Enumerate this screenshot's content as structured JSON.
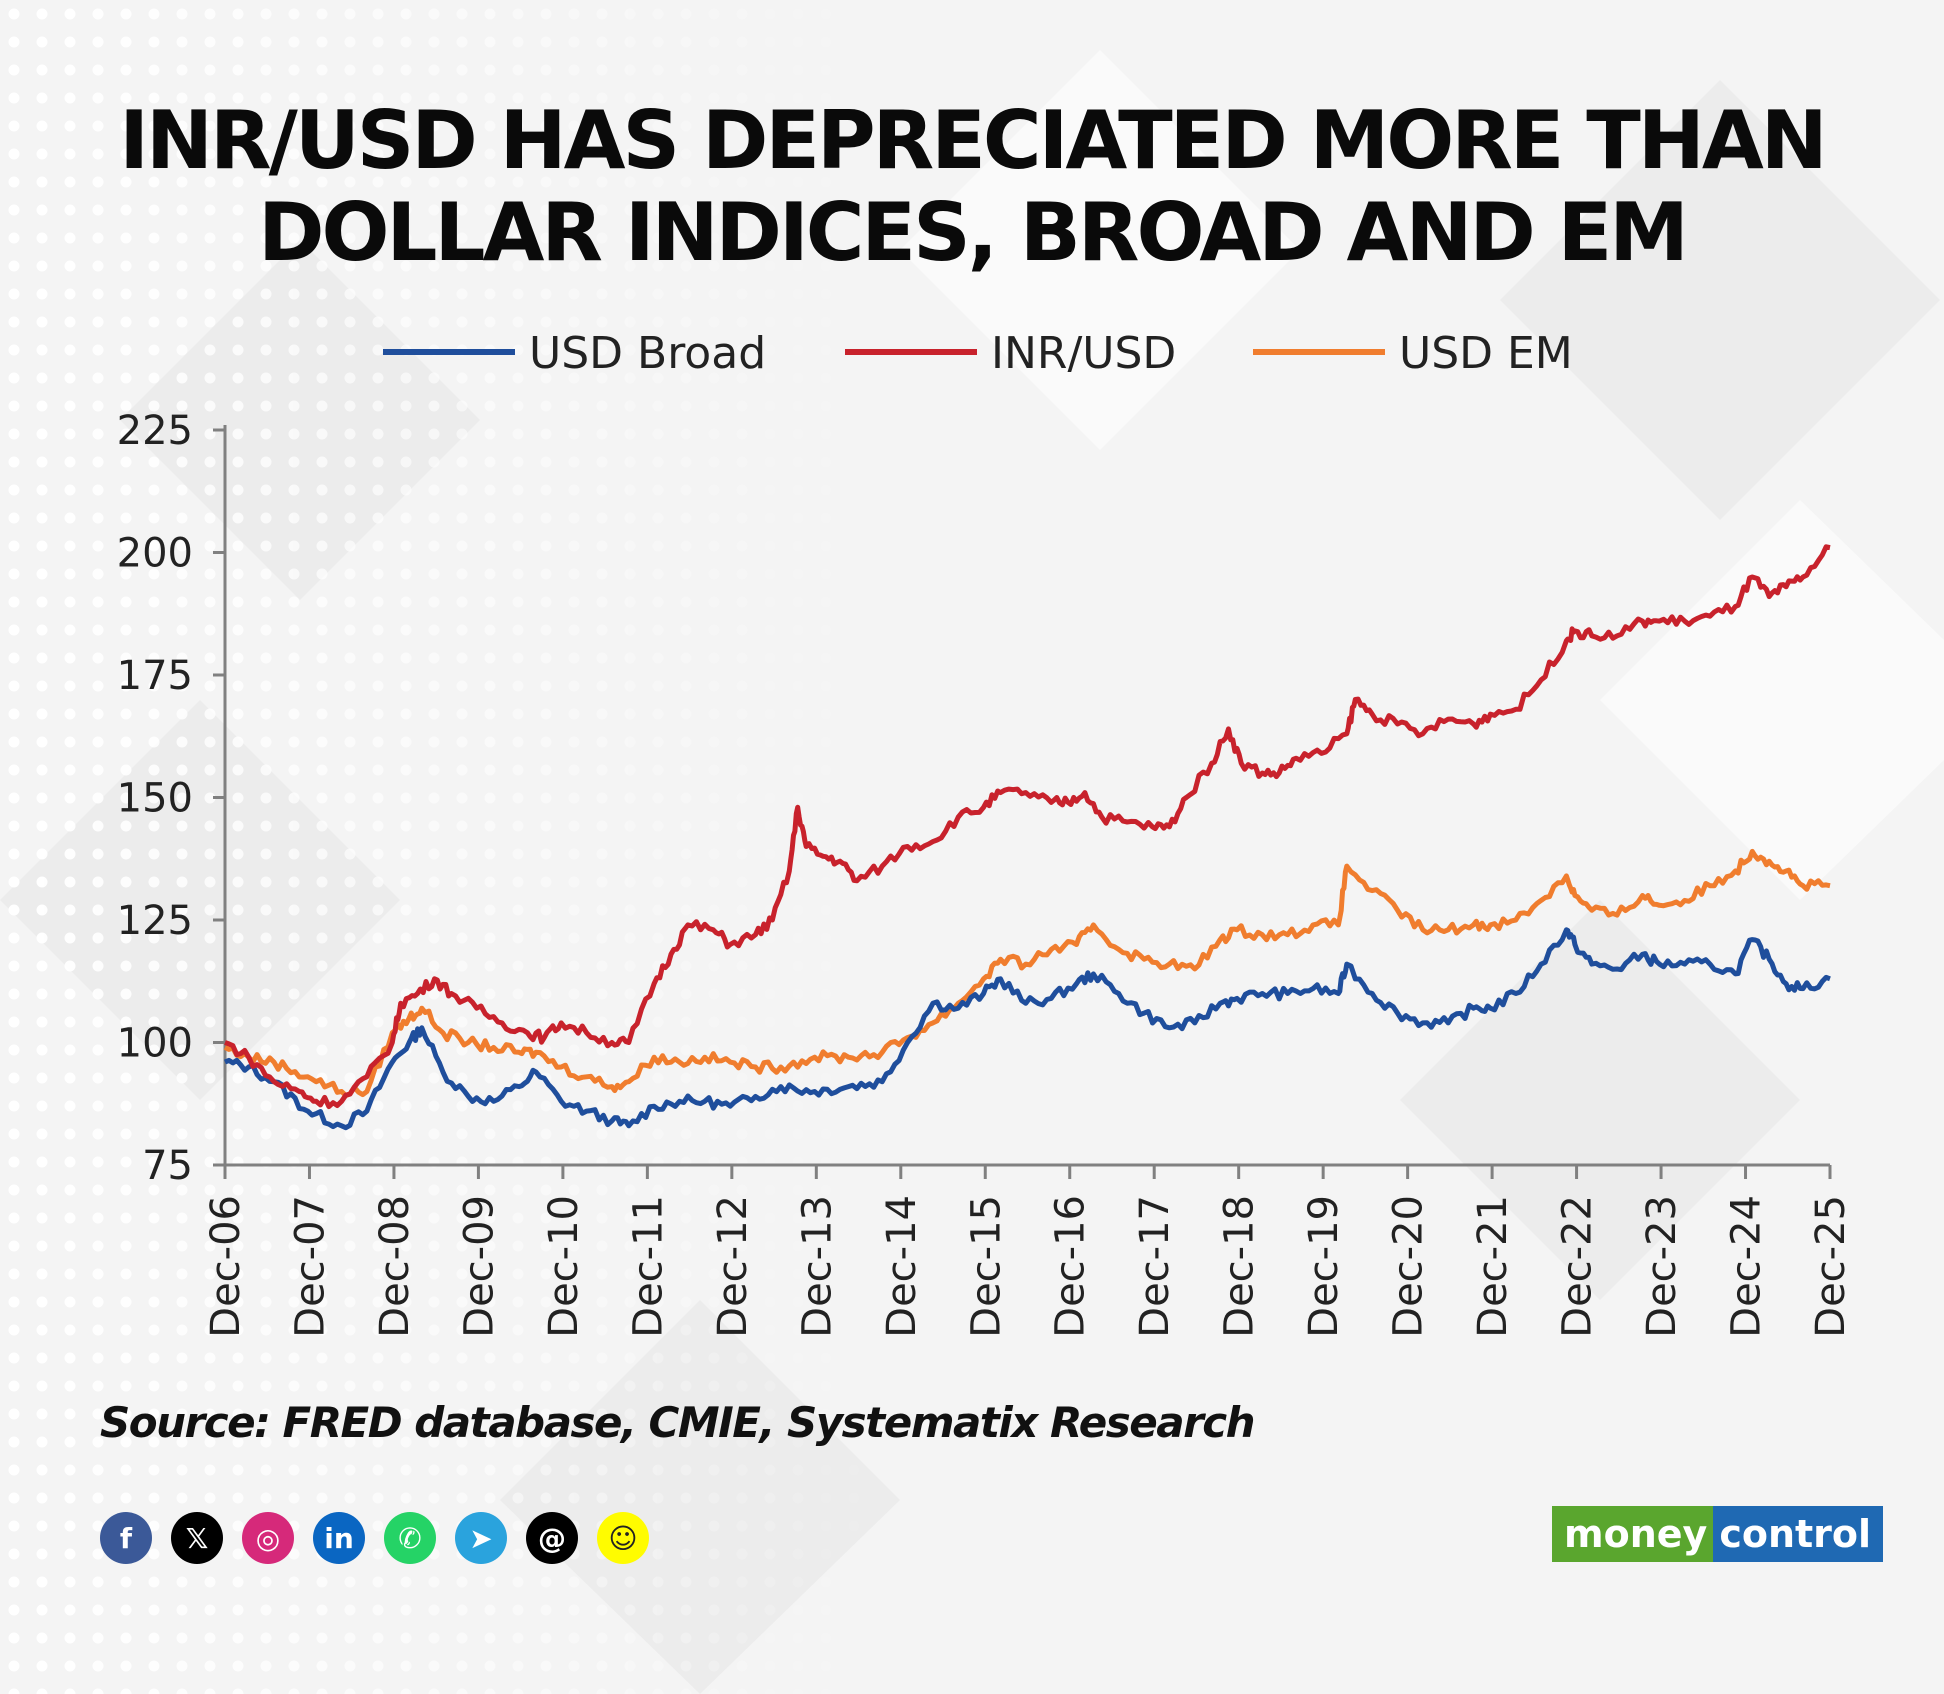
{
  "title_line1": "INR/USD HAS DEPRECIATED MORE THAN",
  "title_line2": "DOLLAR INDICES, BROAD AND EM",
  "source": "Source: FRED database, CMIE, Systematix Research",
  "social": [
    {
      "name": "facebook-icon",
      "glyph": "f",
      "color": "#3b5998"
    },
    {
      "name": "x-icon",
      "glyph": "𝕏",
      "color": "#000000"
    },
    {
      "name": "instagram-icon",
      "glyph": "◎",
      "color": "#d6297a"
    },
    {
      "name": "linkedin-icon",
      "glyph": "in",
      "color": "#0a66c2"
    },
    {
      "name": "whatsapp-icon",
      "glyph": "✆",
      "color": "#25d366"
    },
    {
      "name": "telegram-icon",
      "glyph": "➤",
      "color": "#2aa3dd"
    },
    {
      "name": "threads-icon",
      "glyph": "@",
      "color": "#000000"
    },
    {
      "name": "snapchat-icon",
      "glyph": "☺",
      "color": "#fffc00"
    }
  ],
  "brand": {
    "part1": "money",
    "part2": "control"
  },
  "chart_data": {
    "type": "line",
    "title": "INR/USD HAS DEPRECIATED MORE THAN DOLLAR INDICES, BROAD AND EM",
    "xlabel": "",
    "ylabel": "",
    "ylim": [
      75,
      225
    ],
    "yticks": [
      75,
      100,
      125,
      150,
      175,
      200,
      225
    ],
    "xticks": [
      "Dec-06",
      "Dec-07",
      "Dec-08",
      "Dec-09",
      "Dec-10",
      "Dec-11",
      "Dec-12",
      "Dec-13",
      "Dec-14",
      "Dec-15",
      "Dec-16",
      "Dec-17",
      "Dec-18",
      "Dec-19",
      "Dec-20",
      "Dec-21",
      "Dec-22",
      "Dec-23",
      "Dec-24",
      "Dec-25"
    ],
    "legend_position": "top",
    "grid": false,
    "x_start": 2006.92,
    "x_end": 2025.92,
    "series": [
      {
        "name": "USD Broad",
        "color": "#1f4e9c",
        "points": [
          [
            2006.92,
            96
          ],
          [
            2007.2,
            95
          ],
          [
            2007.5,
            92
          ],
          [
            2007.9,
            86
          ],
          [
            2008.3,
            83
          ],
          [
            2008.6,
            86
          ],
          [
            2008.9,
            96
          ],
          [
            2009.1,
            100
          ],
          [
            2009.25,
            103
          ],
          [
            2009.5,
            94
          ],
          [
            2009.8,
            89
          ],
          [
            2010.1,
            88
          ],
          [
            2010.4,
            91
          ],
          [
            2010.6,
            94
          ],
          [
            2010.9,
            88
          ],
          [
            2011.2,
            86
          ],
          [
            2011.5,
            84
          ],
          [
            2011.7,
            83
          ],
          [
            2012.0,
            87
          ],
          [
            2012.3,
            88
          ],
          [
            2012.6,
            88
          ],
          [
            2012.9,
            87
          ],
          [
            2013.2,
            89
          ],
          [
            2013.5,
            91
          ],
          [
            2013.9,
            90
          ],
          [
            2014.3,
            91
          ],
          [
            2014.7,
            92
          ],
          [
            2015.0,
            100
          ],
          [
            2015.3,
            108
          ],
          [
            2015.6,
            107
          ],
          [
            2015.9,
            110
          ],
          [
            2016.1,
            113
          ],
          [
            2016.4,
            108
          ],
          [
            2016.7,
            109
          ],
          [
            2017.0,
            112
          ],
          [
            2017.2,
            114
          ],
          [
            2017.5,
            110
          ],
          [
            2017.8,
            106
          ],
          [
            2018.1,
            103
          ],
          [
            2018.4,
            104
          ],
          [
            2018.7,
            108
          ],
          [
            2018.9,
            109
          ],
          [
            2019.2,
            110
          ],
          [
            2019.5,
            110
          ],
          [
            2019.8,
            111
          ],
          [
            2020.1,
            110
          ],
          [
            2020.2,
            116
          ],
          [
            2020.5,
            110
          ],
          [
            2020.8,
            106
          ],
          [
            2021.1,
            104
          ],
          [
            2021.4,
            104
          ],
          [
            2021.7,
            107
          ],
          [
            2021.9,
            107
          ],
          [
            2022.2,
            110
          ],
          [
            2022.5,
            116
          ],
          [
            2022.8,
            123
          ],
          [
            2022.9,
            120
          ],
          [
            2023.1,
            116
          ],
          [
            2023.4,
            115
          ],
          [
            2023.7,
            118
          ],
          [
            2023.9,
            116
          ],
          [
            2024.2,
            116
          ],
          [
            2024.5,
            116
          ],
          [
            2024.8,
            114
          ],
          [
            2025.0,
            121
          ],
          [
            2025.2,
            117
          ],
          [
            2025.4,
            112
          ],
          [
            2025.6,
            111
          ],
          [
            2025.92,
            113
          ]
        ]
      },
      {
        "name": "INR/USD",
        "color": "#c8222c",
        "points": [
          [
            2006.92,
            100
          ],
          [
            2007.2,
            97
          ],
          [
            2007.5,
            92
          ],
          [
            2007.8,
            90
          ],
          [
            2008.0,
            88
          ],
          [
            2008.3,
            88
          ],
          [
            2008.6,
            93
          ],
          [
            2008.9,
            100
          ],
          [
            2009.0,
            108
          ],
          [
            2009.2,
            110
          ],
          [
            2009.4,
            113
          ],
          [
            2009.6,
            110
          ],
          [
            2009.9,
            107
          ],
          [
            2010.2,
            104
          ],
          [
            2010.5,
            102
          ],
          [
            2010.7,
            101
          ],
          [
            2010.9,
            104
          ],
          [
            2011.2,
            102
          ],
          [
            2011.5,
            100
          ],
          [
            2011.7,
            100
          ],
          [
            2012.0,
            112
          ],
          [
            2012.2,
            118
          ],
          [
            2012.4,
            124
          ],
          [
            2012.7,
            123
          ],
          [
            2012.9,
            120
          ],
          [
            2013.2,
            122
          ],
          [
            2013.4,
            125
          ],
          [
            2013.6,
            135
          ],
          [
            2013.7,
            148
          ],
          [
            2013.8,
            140
          ],
          [
            2014.0,
            138
          ],
          [
            2014.2,
            137
          ],
          [
            2014.4,
            133
          ],
          [
            2014.7,
            136
          ],
          [
            2015.0,
            140
          ],
          [
            2015.3,
            141
          ],
          [
            2015.6,
            146
          ],
          [
            2015.9,
            148
          ],
          [
            2016.1,
            151
          ],
          [
            2016.4,
            151
          ],
          [
            2016.7,
            149
          ],
          [
            2016.9,
            149
          ],
          [
            2017.1,
            151
          ],
          [
            2017.3,
            146
          ],
          [
            2017.6,
            145
          ],
          [
            2017.9,
            144
          ],
          [
            2018.1,
            144
          ],
          [
            2018.3,
            150
          ],
          [
            2018.6,
            157
          ],
          [
            2018.8,
            164
          ],
          [
            2018.95,
            157
          ],
          [
            2019.2,
            155
          ],
          [
            2019.4,
            155
          ],
          [
            2019.6,
            158
          ],
          [
            2019.9,
            159
          ],
          [
            2020.2,
            163
          ],
          [
            2020.3,
            170
          ],
          [
            2020.5,
            167
          ],
          [
            2020.8,
            165
          ],
          [
            2021.1,
            163
          ],
          [
            2021.4,
            166
          ],
          [
            2021.7,
            165
          ],
          [
            2021.9,
            167
          ],
          [
            2022.2,
            168
          ],
          [
            2022.5,
            174
          ],
          [
            2022.8,
            182
          ],
          [
            2022.9,
            184
          ],
          [
            2023.1,
            183
          ],
          [
            2023.4,
            183
          ],
          [
            2023.7,
            186
          ],
          [
            2023.9,
            186
          ],
          [
            2024.2,
            186
          ],
          [
            2024.5,
            187
          ],
          [
            2024.8,
            189
          ],
          [
            2025.0,
            195
          ],
          [
            2025.2,
            191
          ],
          [
            2025.4,
            193
          ],
          [
            2025.6,
            195
          ],
          [
            2025.92,
            201
          ]
        ]
      },
      {
        "name": "USD EM",
        "color": "#f07d2e",
        "points": [
          [
            2006.92,
            99
          ],
          [
            2007.2,
            97
          ],
          [
            2007.5,
            96
          ],
          [
            2007.9,
            93
          ],
          [
            2008.3,
            90
          ],
          [
            2008.6,
            90
          ],
          [
            2008.9,
            102
          ],
          [
            2009.1,
            105
          ],
          [
            2009.25,
            107
          ],
          [
            2009.5,
            102
          ],
          [
            2009.8,
            100
          ],
          [
            2010.1,
            99
          ],
          [
            2010.4,
            98
          ],
          [
            2010.6,
            98
          ],
          [
            2010.9,
            95
          ],
          [
            2011.2,
            93
          ],
          [
            2011.5,
            91
          ],
          [
            2011.7,
            92
          ],
          [
            2012.0,
            97
          ],
          [
            2012.3,
            96
          ],
          [
            2012.6,
            97
          ],
          [
            2012.9,
            96
          ],
          [
            2013.2,
            95
          ],
          [
            2013.5,
            95
          ],
          [
            2013.9,
            97
          ],
          [
            2014.3,
            97
          ],
          [
            2014.7,
            98
          ],
          [
            2015.0,
            101
          ],
          [
            2015.3,
            104
          ],
          [
            2015.6,
            108
          ],
          [
            2015.9,
            113
          ],
          [
            2016.1,
            117
          ],
          [
            2016.4,
            116
          ],
          [
            2016.7,
            119
          ],
          [
            2017.0,
            120
          ],
          [
            2017.2,
            124
          ],
          [
            2017.5,
            119
          ],
          [
            2017.8,
            117
          ],
          [
            2018.1,
            116
          ],
          [
            2018.4,
            115
          ],
          [
            2018.7,
            121
          ],
          [
            2018.9,
            123
          ],
          [
            2019.2,
            122
          ],
          [
            2019.5,
            122
          ],
          [
            2019.8,
            124
          ],
          [
            2020.1,
            124
          ],
          [
            2020.2,
            136
          ],
          [
            2020.5,
            131
          ],
          [
            2020.8,
            127
          ],
          [
            2021.1,
            123
          ],
          [
            2021.4,
            123
          ],
          [
            2021.7,
            124
          ],
          [
            2021.9,
            124
          ],
          [
            2022.2,
            125
          ],
          [
            2022.5,
            129
          ],
          [
            2022.8,
            134
          ],
          [
            2022.9,
            130
          ],
          [
            2023.1,
            127
          ],
          [
            2023.4,
            126
          ],
          [
            2023.7,
            130
          ],
          [
            2023.9,
            128
          ],
          [
            2024.2,
            129
          ],
          [
            2024.5,
            132
          ],
          [
            2024.8,
            135
          ],
          [
            2025.0,
            139
          ],
          [
            2025.2,
            137
          ],
          [
            2025.4,
            135
          ],
          [
            2025.6,
            132
          ],
          [
            2025.92,
            132
          ]
        ]
      }
    ]
  }
}
